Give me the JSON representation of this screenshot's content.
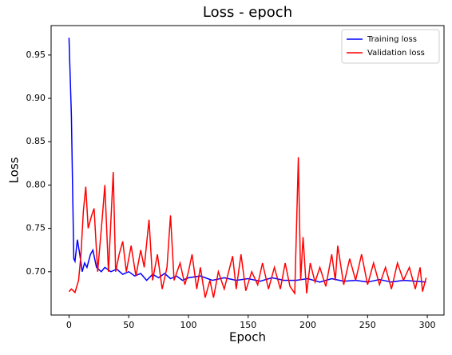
{
  "chart_data": {
    "type": "line",
    "title": "Loss - epoch",
    "xlabel": "Epoch",
    "ylabel": "Loss",
    "xlim": [
      -15,
      314
    ],
    "ylim": [
      0.65,
      0.984
    ],
    "xticks": [
      0,
      50,
      100,
      150,
      200,
      250,
      300
    ],
    "yticks": [
      {
        "value": 0.7,
        "label": "0.70"
      },
      {
        "value": 0.75,
        "label": "0.75"
      },
      {
        "value": 0.8,
        "label": "0.80"
      },
      {
        "value": 0.85,
        "label": "0.85"
      },
      {
        "value": 0.9,
        "label": "0.90"
      },
      {
        "value": 0.95,
        "label": "0.95"
      }
    ],
    "legend": "upper right",
    "grid": false,
    "series": [
      {
        "name": "Training loss",
        "color": "#0000ff",
        "x": [
          0,
          2,
          4,
          5,
          7,
          9,
          11,
          13,
          15,
          18,
          20,
          23,
          27,
          30,
          35,
          40,
          45,
          50,
          55,
          60,
          65,
          70,
          75,
          80,
          85,
          90,
          95,
          100,
          110,
          120,
          130,
          140,
          150,
          160,
          170,
          180,
          190,
          200,
          210,
          220,
          230,
          240,
          250,
          260,
          270,
          280,
          290,
          299
        ],
        "values": [
          0.97,
          0.88,
          0.715,
          0.712,
          0.737,
          0.72,
          0.7,
          0.71,
          0.705,
          0.72,
          0.725,
          0.705,
          0.7,
          0.705,
          0.7,
          0.703,
          0.697,
          0.7,
          0.695,
          0.698,
          0.69,
          0.697,
          0.693,
          0.698,
          0.692,
          0.695,
          0.69,
          0.693,
          0.695,
          0.69,
          0.693,
          0.69,
          0.692,
          0.689,
          0.693,
          0.69,
          0.69,
          0.692,
          0.688,
          0.692,
          0.689,
          0.69,
          0.688,
          0.691,
          0.688,
          0.69,
          0.689,
          0.688
        ]
      },
      {
        "name": "Validation loss",
        "color": "#ff0000",
        "x": [
          0,
          2,
          5,
          8,
          10,
          12,
          14,
          16,
          19,
          21,
          24,
          28,
          30,
          33,
          37,
          39,
          42,
          45,
          48,
          52,
          56,
          60,
          63,
          67,
          70,
          74,
          78,
          82,
          85,
          88,
          93,
          97,
          100,
          103,
          107,
          110,
          114,
          118,
          121,
          125,
          130,
          137,
          140,
          144,
          148,
          153,
          158,
          162,
          167,
          172,
          177,
          181,
          185,
          189,
          192,
          194,
          196,
          199,
          202,
          206,
          210,
          215,
          220,
          223,
          225,
          230,
          235,
          240,
          245,
          250,
          255,
          260,
          265,
          270,
          275,
          280,
          285,
          290,
          294,
          296,
          299
        ],
        "values": [
          0.677,
          0.68,
          0.676,
          0.69,
          0.72,
          0.77,
          0.798,
          0.75,
          0.765,
          0.773,
          0.7,
          0.765,
          0.8,
          0.7,
          0.815,
          0.7,
          0.72,
          0.735,
          0.7,
          0.73,
          0.695,
          0.725,
          0.705,
          0.76,
          0.69,
          0.72,
          0.68,
          0.705,
          0.765,
          0.69,
          0.71,
          0.685,
          0.7,
          0.72,
          0.68,
          0.705,
          0.67,
          0.69,
          0.67,
          0.7,
          0.68,
          0.718,
          0.68,
          0.72,
          0.678,
          0.7,
          0.685,
          0.71,
          0.68,
          0.705,
          0.68,
          0.71,
          0.683,
          0.675,
          0.832,
          0.69,
          0.74,
          0.675,
          0.71,
          0.688,
          0.705,
          0.683,
          0.72,
          0.69,
          0.73,
          0.685,
          0.715,
          0.69,
          0.72,
          0.685,
          0.71,
          0.685,
          0.705,
          0.68,
          0.71,
          0.69,
          0.705,
          0.68,
          0.705,
          0.677,
          0.693
        ]
      }
    ]
  }
}
